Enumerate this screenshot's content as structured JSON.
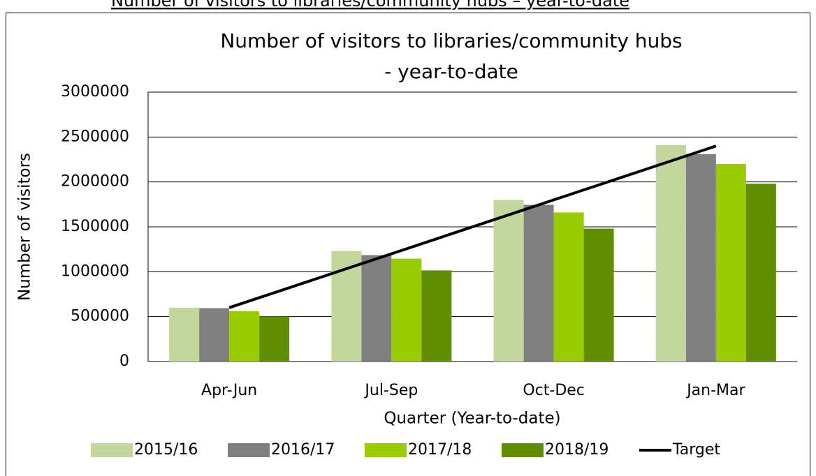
{
  "heading": "Number of visitors to libraries/community hubs – year-to-date",
  "chart_data": {
    "type": "bar",
    "title": [
      "Number of visitors to libraries/community hubs",
      "- year-to-date"
    ],
    "x_label": "Quarter (Year-to-date)",
    "y_label": "Number of visitors",
    "categories": [
      "Apr-Jun",
      "Jul-Sep",
      "Oct-Dec",
      "Jan-Mar"
    ],
    "series": [
      {
        "name": "2015/16",
        "color": "#c3d69b",
        "values": [
          600000,
          1230000,
          1800000,
          2410000
        ]
      },
      {
        "name": "2016/17",
        "color": "#808080",
        "values": [
          595000,
          1185000,
          1745000,
          2310000
        ]
      },
      {
        "name": "2017/18",
        "color": "#99cc00",
        "values": [
          560000,
          1145000,
          1660000,
          2200000
        ]
      },
      {
        "name": "2018/19",
        "color": "#5f8f00",
        "values": [
          500000,
          1015000,
          1480000,
          1980000
        ]
      },
      {
        "name": "Target",
        "type": "line",
        "color": "#000000",
        "values": [
          600000,
          1200000,
          1800000,
          2400000
        ]
      }
    ],
    "ylim": [
      0,
      3000000
    ],
    "yticks": [
      0,
      500000,
      1000000,
      1500000,
      2000000,
      2500000,
      3000000
    ],
    "grid": true,
    "legend": "bottom"
  }
}
